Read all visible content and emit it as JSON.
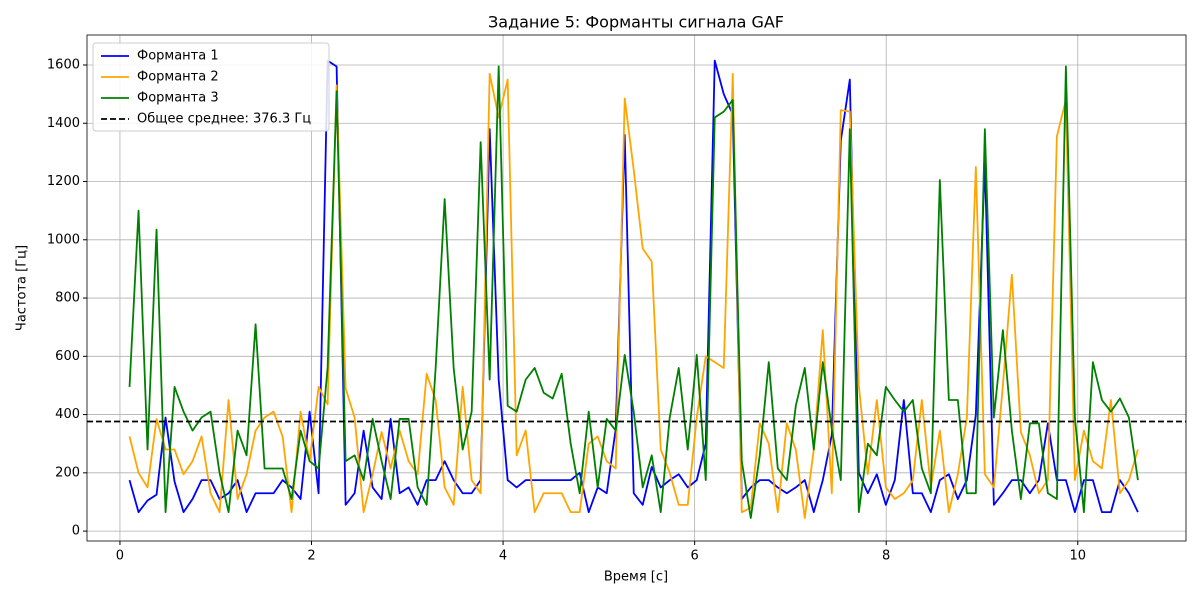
{
  "chart_data": {
    "type": "line",
    "title": "Задание 5: Форманты сигнала GAF",
    "x_label": "Время [с]",
    "y_label": "Частота [Гц]",
    "x": [
      0.1,
      0.194,
      0.288,
      0.382,
      0.476,
      0.57,
      0.664,
      0.758,
      0.852,
      0.946,
      1.04,
      1.134,
      1.228,
      1.322,
      1.416,
      1.51,
      1.604,
      1.698,
      1.792,
      1.886,
      1.98,
      2.074,
      2.168,
      2.262,
      2.356,
      2.45,
      2.544,
      2.638,
      2.732,
      2.826,
      2.92,
      3.014,
      3.108,
      3.202,
      3.296,
      3.39,
      3.484,
      3.578,
      3.672,
      3.766,
      3.86,
      3.954,
      4.048,
      4.142,
      4.236,
      4.33,
      4.424,
      4.518,
      4.612,
      4.706,
      4.8,
      4.894,
      4.988,
      5.082,
      5.176,
      5.27,
      5.364,
      5.458,
      5.552,
      5.646,
      5.74,
      5.834,
      5.928,
      6.022,
      6.116,
      6.21,
      6.304,
      6.398,
      6.492,
      6.586,
      6.68,
      6.774,
      6.868,
      6.962,
      7.056,
      7.15,
      7.244,
      7.338,
      7.432,
      7.526,
      7.62,
      7.714,
      7.808,
      7.902,
      7.996,
      8.09,
      8.184,
      8.278,
      8.372,
      8.466,
      8.56,
      8.654,
      8.748,
      8.842,
      8.936,
      9.03,
      9.124,
      9.218,
      9.312,
      9.406,
      9.5,
      9.594,
      9.688,
      9.782,
      9.876,
      9.97,
      10.064,
      10.158,
      10.252,
      10.346,
      10.44,
      10.534,
      10.628
    ],
    "series": [
      {
        "name": "Форманта 1",
        "color": "#0000ff",
        "values": [
          175,
          65,
          105,
          125,
          390,
          170,
          65,
          110,
          175,
          175,
          110,
          130,
          175,
          65,
          130,
          130,
          130,
          175,
          150,
          110,
          410,
          130,
          1615,
          1595,
          90,
          130,
          345,
          150,
          110,
          385,
          130,
          150,
          90,
          175,
          175,
          240,
          175,
          130,
          130,
          175,
          1380,
          520,
          175,
          150,
          175,
          175,
          175,
          175,
          175,
          175,
          200,
          65,
          150,
          130,
          350,
          1360,
          130,
          90,
          220,
          150,
          175,
          195,
          150,
          175,
          300,
          1615,
          1500,
          1430,
          110,
          150,
          175,
          175,
          150,
          130,
          150,
          175,
          65,
          175,
          330,
          1340,
          1550,
          200,
          130,
          195,
          90,
          175,
          450,
          130,
          130,
          65,
          175,
          195,
          110,
          175,
          400,
          1270,
          90,
          130,
          175,
          175,
          130,
          175,
          370,
          175,
          175,
          65,
          175,
          175,
          65,
          65,
          175,
          130,
          65
        ]
      },
      {
        "name": "Форманта 2",
        "color": "#ffa500",
        "values": [
          325,
          200,
          150,
          385,
          280,
          280,
          195,
          240,
          325,
          130,
          65,
          450,
          110,
          195,
          345,
          390,
          410,
          325,
          65,
          410,
          240,
          495,
          435,
          1530,
          490,
          390,
          65,
          195,
          340,
          215,
          345,
          240,
          195,
          540,
          450,
          150,
          90,
          495,
          175,
          130,
          1570,
          1420,
          1550,
          260,
          345,
          65,
          130,
          130,
          130,
          65,
          65,
          300,
          325,
          240,
          215,
          1485,
          1240,
          970,
          925,
          280,
          200,
          90,
          90,
          390,
          600,
          580,
          560,
          1570,
          65,
          80,
          370,
          300,
          65,
          370,
          280,
          45,
          280,
          690,
          130,
          1445,
          1440,
          500,
          195,
          450,
          150,
          110,
          130,
          175,
          450,
          150,
          345,
          65,
          195,
          390,
          1250,
          195,
          150,
          500,
          880,
          340,
          260,
          130,
          175,
          1355,
          1480,
          175,
          345,
          240,
          215,
          450,
          130,
          175,
          280
        ]
      },
      {
        "name": "Форманта 3",
        "color": "#008000",
        "values": [
          495,
          1100,
          280,
          1035,
          65,
          495,
          410,
          345,
          390,
          410,
          200,
          65,
          345,
          260,
          710,
          215,
          215,
          215,
          110,
          345,
          240,
          215,
          560,
          1510,
          240,
          260,
          175,
          385,
          240,
          110,
          385,
          385,
          150,
          90,
          560,
          1140,
          560,
          280,
          410,
          1335,
          520,
          1595,
          430,
          410,
          520,
          560,
          475,
          455,
          540,
          300,
          130,
          410,
          150,
          385,
          345,
          605,
          410,
          150,
          260,
          65,
          390,
          560,
          280,
          605,
          175,
          1420,
          1440,
          1480,
          240,
          45,
          260,
          580,
          215,
          175,
          430,
          560,
          280,
          580,
          350,
          175,
          1380,
          65,
          300,
          260,
          495,
          450,
          410,
          450,
          215,
          130,
          1205,
          450,
          450,
          130,
          130,
          1380,
          390,
          690,
          345,
          110,
          370,
          370,
          130,
          110,
          1595,
          390,
          65,
          580,
          450,
          410,
          455,
          390,
          175
        ]
      }
    ],
    "hline": {
      "value": 376.3,
      "label": "Общее среднее: 376.3 Гц",
      "color": "#000000"
    },
    "xlim": [
      -0.344,
      11.13
    ],
    "ylim": [
      -34,
      1703
    ],
    "xticks": [
      0,
      2,
      4,
      6,
      8,
      10
    ],
    "yticks": [
      0,
      200,
      400,
      600,
      800,
      1000,
      1200,
      1400,
      1600
    ],
    "grid": true,
    "legend": "upper left"
  }
}
